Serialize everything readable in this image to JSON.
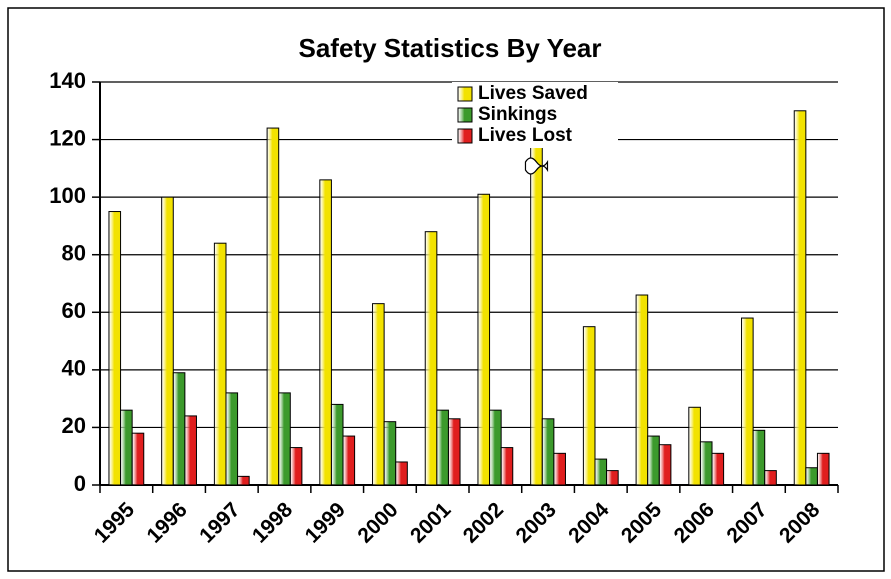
{
  "chart_data": {
    "type": "bar",
    "title": "Safety Statistics By Year",
    "categories": [
      "1995",
      "1996",
      "1997",
      "1998",
      "1999",
      "2000",
      "2001",
      "2002",
      "2003",
      "2004",
      "2005",
      "2006",
      "2007",
      "2008"
    ],
    "series": [
      {
        "name": "Lives Saved",
        "color": "#f2e200",
        "values": [
          95,
          100,
          84,
          124,
          106,
          63,
          88,
          101,
          150,
          55,
          66,
          27,
          58,
          130
        ]
      },
      {
        "name": "Sinkings",
        "color": "#3c9a2c",
        "values": [
          26,
          39,
          32,
          32,
          28,
          22,
          26,
          26,
          23,
          9,
          17,
          15,
          19,
          6
        ]
      },
      {
        "name": "Lives Lost",
        "color": "#e01e1e",
        "values": [
          18,
          24,
          3,
          13,
          17,
          8,
          23,
          13,
          11,
          5,
          14,
          11,
          5,
          11
        ]
      }
    ],
    "ylim": [
      0,
      140
    ],
    "yticks": [
      0,
      20,
      40,
      60,
      80,
      100,
      120,
      140
    ],
    "grid": true,
    "legend": "top"
  }
}
